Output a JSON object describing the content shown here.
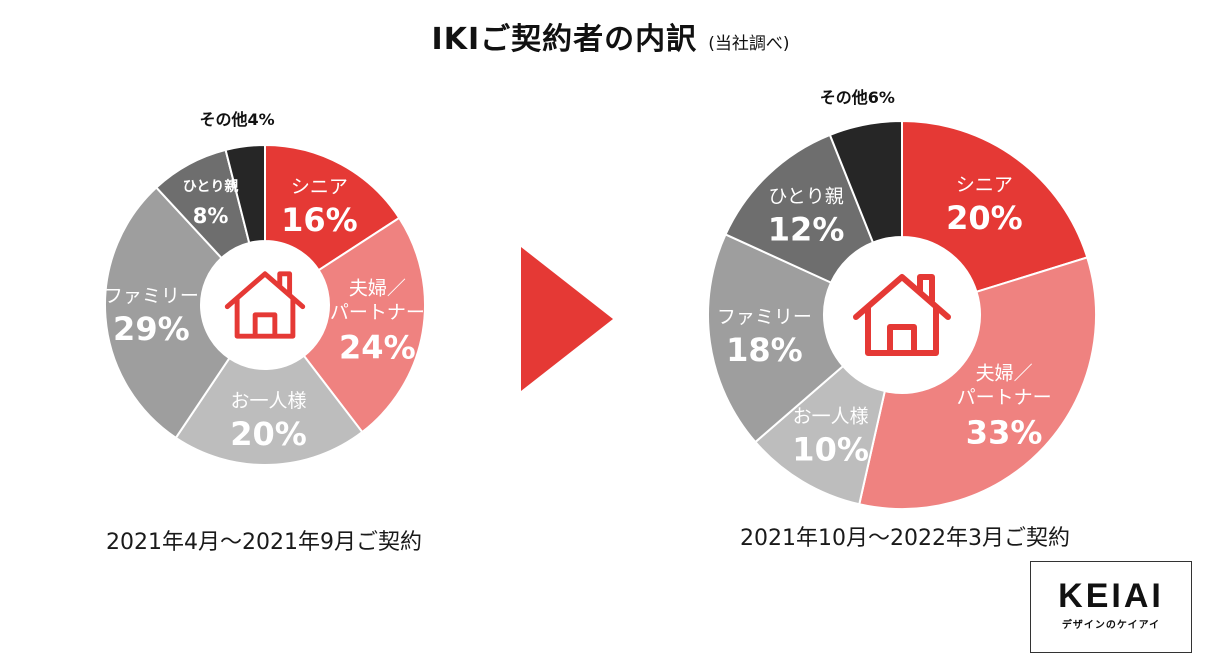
{
  "title": {
    "main": "IKIご契約者の内訳",
    "note": "(当社調べ)"
  },
  "arrow_color": "#e53935",
  "icon": "house-icon",
  "logo": {
    "word": "KEIAI",
    "sub": "デザインのケイアイ"
  },
  "chart_data": [
    {
      "type": "pie",
      "caption": "2021年4月～2021年9月ご契約",
      "slices": [
        {
          "label": "シニア",
          "value": 16,
          "display": "16%",
          "color": "#e53935"
        },
        {
          "label": "夫婦／パートナー",
          "line1": "夫婦／",
          "line2": "パートナー",
          "value": 24,
          "display": "24%",
          "color": "#ef8280"
        },
        {
          "label": "お一人様",
          "value": 20,
          "display": "20%",
          "color": "#bdbdbd"
        },
        {
          "label": "ファミリー",
          "value": 29,
          "display": "29%",
          "color": "#9e9e9e"
        },
        {
          "label": "ひとり親",
          "value": 8,
          "display": "8%",
          "color": "#6e6e6e"
        },
        {
          "label": "その他",
          "value": 4,
          "display": "その他4%",
          "color": "#262626"
        }
      ]
    },
    {
      "type": "pie",
      "caption": "2021年10月～2022年3月ご契約",
      "slices": [
        {
          "label": "シニア",
          "value": 20,
          "display": "20%",
          "color": "#e53935"
        },
        {
          "label": "夫婦／パートナー",
          "line1": "夫婦／",
          "line2": "パートナー",
          "value": 33,
          "display": "33%",
          "color": "#ef8280"
        },
        {
          "label": "お一人様",
          "value": 10,
          "display": "10%",
          "color": "#bdbdbd"
        },
        {
          "label": "ファミリー",
          "value": 18,
          "display": "18%",
          "color": "#9e9e9e"
        },
        {
          "label": "ひとり親",
          "value": 12,
          "display": "12%",
          "color": "#6e6e6e"
        },
        {
          "label": "その他",
          "value": 6,
          "display": "その他6%",
          "color": "#262626"
        }
      ]
    }
  ]
}
